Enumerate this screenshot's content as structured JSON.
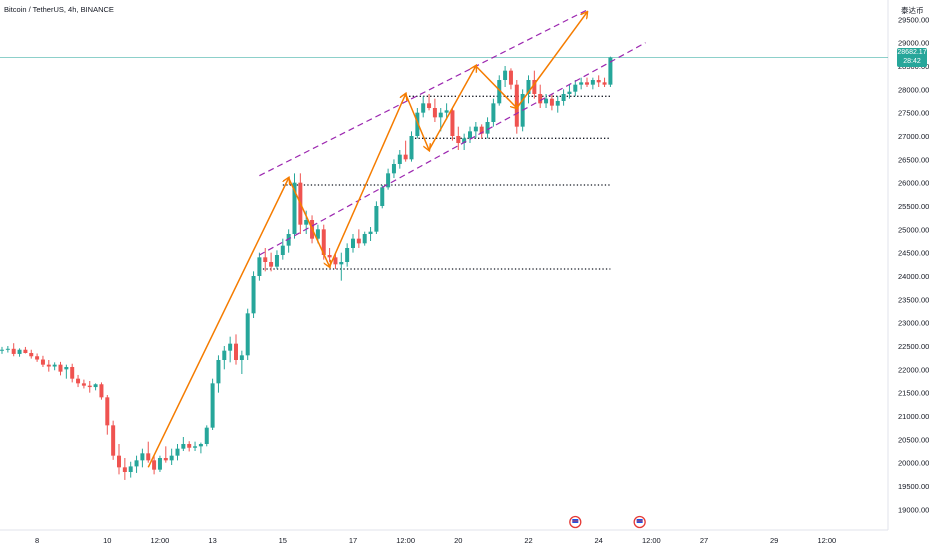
{
  "header": {
    "symbol_line": "Bitcoin / TetherUS, 4h, BINANCE",
    "currency": "泰达币"
  },
  "last_price": {
    "value": "28682.17",
    "countdown": "28:42",
    "price": 28682.17
  },
  "colors": {
    "up": "#26a69a",
    "down": "#ef5350",
    "trend_arrow": "#f57c00",
    "channel": "#9c27b0",
    "level": "#131722",
    "price_line": "#26a69a"
  },
  "chart_data": {
    "type": "candlestick",
    "title": "",
    "symbol": "Bitcoin / TetherUS",
    "interval": "4h",
    "exchange": "BINANCE",
    "ylim": [
      18900,
      29700
    ],
    "y_ticks": [
      "29500.00",
      "29000.00",
      "28500.00",
      "28000.00",
      "27500.00",
      "27000.00",
      "26500.00",
      "26000.00",
      "25500.00",
      "25000.00",
      "24500.00",
      "24000.00",
      "23500.00",
      "23000.00",
      "22500.00",
      "22000.00",
      "21500.00",
      "21000.00",
      "20500.00",
      "20000.00",
      "19500.00",
      "19000.00"
    ],
    "x_ticks": [
      {
        "label": "8",
        "bar": 6
      },
      {
        "label": "10",
        "bar": 18
      },
      {
        "label": "12:00",
        "bar": 27
      },
      {
        "label": "13",
        "bar": 36
      },
      {
        "label": "15",
        "bar": 48
      },
      {
        "label": "17",
        "bar": 60
      },
      {
        "label": "12:00",
        "bar": 69
      },
      {
        "label": "20",
        "bar": 78
      },
      {
        "label": "22",
        "bar": 90
      },
      {
        "label": "24",
        "bar": 102
      },
      {
        "label": "12:00",
        "bar": 111
      },
      {
        "label": "27",
        "bar": 120
      },
      {
        "label": "29",
        "bar": 132
      },
      {
        "label": "12:00",
        "bar": 141
      }
    ],
    "ohlc": [
      [
        22400,
        22480,
        22330,
        22420
      ],
      [
        22420,
        22500,
        22360,
        22440
      ],
      [
        22440,
        22560,
        22280,
        22330
      ],
      [
        22330,
        22450,
        22270,
        22420
      ],
      [
        22420,
        22480,
        22340,
        22350
      ],
      [
        22350,
        22420,
        22230,
        22280
      ],
      [
        22280,
        22340,
        22160,
        22210
      ],
      [
        22210,
        22290,
        22050,
        22100
      ],
      [
        22100,
        22200,
        21950,
        22060
      ],
      [
        22060,
        22150,
        21980,
        22100
      ],
      [
        22100,
        22160,
        21870,
        21950
      ],
      [
        22000,
        22100,
        21800,
        22050
      ],
      [
        22050,
        22120,
        21720,
        21800
      ],
      [
        21800,
        21880,
        21620,
        21700
      ],
      [
        21700,
        21780,
        21590,
        21650
      ],
      [
        21650,
        21750,
        21500,
        21620
      ],
      [
        21620,
        21700,
        21550,
        21680
      ],
      [
        21680,
        21720,
        21350,
        21400
      ],
      [
        21400,
        21450,
        20600,
        20800
      ],
      [
        20800,
        20900,
        20060,
        20150
      ],
      [
        20150,
        20400,
        19750,
        19900
      ],
      [
        19900,
        20100,
        19630,
        19800
      ],
      [
        19800,
        20020,
        19680,
        19920
      ],
      [
        19920,
        20150,
        19780,
        20050
      ],
      [
        20050,
        20300,
        19900,
        20200
      ],
      [
        20200,
        20450,
        20000,
        20050
      ],
      [
        20050,
        20150,
        19750,
        19850
      ],
      [
        19850,
        20150,
        19800,
        20100
      ],
      [
        20100,
        20350,
        20000,
        20050
      ],
      [
        20050,
        20300,
        19950,
        20150
      ],
      [
        20150,
        20400,
        20050,
        20300
      ],
      [
        20300,
        20550,
        20250,
        20400
      ],
      [
        20400,
        20460,
        20240,
        20320
      ],
      [
        20320,
        20450,
        20250,
        20350
      ],
      [
        20350,
        20430,
        20200,
        20400
      ],
      [
        20400,
        20800,
        20350,
        20750
      ],
      [
        20750,
        21800,
        20700,
        21700
      ],
      [
        21700,
        22300,
        21500,
        22200
      ],
      [
        22200,
        22500,
        22000,
        22400
      ],
      [
        22400,
        22700,
        22150,
        22550
      ],
      [
        22550,
        22750,
        22100,
        22200
      ],
      [
        22200,
        22400,
        21900,
        22300
      ],
      [
        22300,
        23300,
        22200,
        23200
      ],
      [
        23200,
        24100,
        23100,
        24000
      ],
      [
        24000,
        24500,
        23900,
        24400
      ],
      [
        24400,
        24600,
        24100,
        24300
      ],
      [
        24300,
        24500,
        24100,
        24200
      ],
      [
        24200,
        24550,
        24150,
        24450
      ],
      [
        24450,
        24800,
        24350,
        24650
      ],
      [
        24650,
        25000,
        24500,
        24900
      ],
      [
        24900,
        26200,
        24800,
        26000
      ],
      [
        26000,
        26200,
        24900,
        25100
      ],
      [
        25100,
        25400,
        24900,
        25200
      ],
      [
        25200,
        25300,
        24700,
        24800
      ],
      [
        24800,
        25100,
        24700,
        25000
      ],
      [
        25000,
        25100,
        24350,
        24450
      ],
      [
        24450,
        24600,
        24300,
        24400
      ],
      [
        24400,
        24500,
        24150,
        24250
      ],
      [
        24250,
        24500,
        23900,
        24300
      ],
      [
        24300,
        24700,
        24200,
        24600
      ],
      [
        24600,
        24900,
        24500,
        24800
      ],
      [
        24800,
        25000,
        24600,
        24700
      ],
      [
        24700,
        24950,
        24650,
        24900
      ],
      [
        24900,
        25050,
        24750,
        24950
      ],
      [
        24950,
        25600,
        24900,
        25500
      ],
      [
        25500,
        25950,
        25450,
        25900
      ],
      [
        25900,
        26300,
        25850,
        26200
      ],
      [
        26200,
        26500,
        26100,
        26400
      ],
      [
        26400,
        26700,
        26300,
        26600
      ],
      [
        26600,
        26900,
        26450,
        26500
      ],
      [
        26500,
        27100,
        26450,
        27000
      ],
      [
        27000,
        27600,
        26950,
        27500
      ],
      [
        27500,
        27850,
        27400,
        27700
      ],
      [
        27700,
        27900,
        27550,
        27600
      ],
      [
        27600,
        27800,
        27300,
        27400
      ],
      [
        27400,
        27600,
        27100,
        27500
      ],
      [
        27500,
        27700,
        27350,
        27550
      ],
      [
        27550,
        27600,
        26900,
        27000
      ],
      [
        27000,
        27200,
        26700,
        26850
      ],
      [
        26850,
        27050,
        26700,
        26950
      ],
      [
        26950,
        27200,
        26850,
        27100
      ],
      [
        27100,
        27300,
        26950,
        27200
      ],
      [
        27200,
        27250,
        26950,
        27050
      ],
      [
        27050,
        27400,
        26950,
        27300
      ],
      [
        27300,
        27800,
        27200,
        27700
      ],
      [
        27700,
        28300,
        27650,
        28200
      ],
      [
        28200,
        28500,
        28050,
        28400
      ],
      [
        28400,
        28450,
        28000,
        28100
      ],
      [
        28100,
        28200,
        27050,
        27200
      ],
      [
        27200,
        28000,
        27100,
        27900
      ],
      [
        27900,
        28300,
        27700,
        28200
      ],
      [
        28200,
        28400,
        27800,
        27900
      ],
      [
        27900,
        28100,
        27600,
        27700
      ],
      [
        27700,
        27900,
        27600,
        27800
      ],
      [
        27800,
        27900,
        27550,
        27650
      ],
      [
        27650,
        27850,
        27500,
        27750
      ],
      [
        27750,
        28000,
        27650,
        27900
      ],
      [
        27900,
        28100,
        27800,
        27950
      ],
      [
        27950,
        28200,
        27850,
        28100
      ],
      [
        28100,
        28250,
        28000,
        28150
      ],
      [
        28150,
        28250,
        28050,
        28100
      ],
      [
        28100,
        28250,
        28000,
        28200
      ],
      [
        28200,
        28300,
        28050,
        28150
      ],
      [
        28150,
        28250,
        28050,
        28100
      ],
      [
        28100,
        28700,
        28050,
        28682.17
      ]
    ],
    "horizontal_levels": [
      {
        "price": 27850,
        "from_bar": 69,
        "to_bar": 104
      },
      {
        "price": 26950,
        "from_bar": 70,
        "to_bar": 104
      },
      {
        "price": 25950,
        "from_bar": 48,
        "to_bar": 104
      },
      {
        "price": 24150,
        "from_bar": 44,
        "to_bar": 104
      }
    ],
    "channel_lines": [
      {
        "from": [
          44,
          26150
        ],
        "to": [
          100,
          29700
        ]
      },
      {
        "from": [
          44,
          24450
        ],
        "to": [
          110,
          29000
        ]
      }
    ],
    "trend_arrows": [
      [
        [
          25,
          19900
        ],
        [
          49,
          26100
        ],
        [
          56,
          24200
        ],
        [
          69,
          27900
        ],
        [
          73,
          26700
        ],
        [
          81,
          28500
        ],
        [
          88,
          27600
        ],
        [
          100,
          29650
        ]
      ]
    ],
    "event_markers": [
      {
        "bar": 98,
        "icon": "calendar-flag"
      },
      {
        "bar": 109,
        "icon": "calendar-flag"
      }
    ],
    "grid": false,
    "legend": "none"
  }
}
